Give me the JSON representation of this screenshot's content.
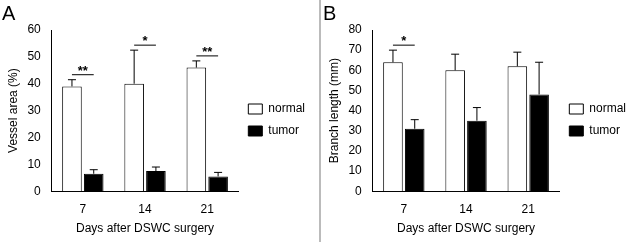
{
  "chart_data": [
    {
      "type": "bar",
      "title": "A",
      "x_label": "Days after DSWC surgery",
      "y_label": "Vessel area (%)",
      "categories": [
        "7",
        "14",
        "21"
      ],
      "series": [
        {
          "name": "normal",
          "color": "#ffffff",
          "values": [
            39,
            40,
            46
          ],
          "errors": [
            2.5,
            12.5,
            2.5
          ]
        },
        {
          "name": "tumor",
          "color": "#000000",
          "values": [
            6.5,
            7.5,
            5.5
          ],
          "errors": [
            1.5,
            1.5,
            1.5
          ]
        }
      ],
      "ylim": [
        0,
        60
      ],
      "yticks": [
        0,
        10,
        20,
        30,
        40,
        50,
        60
      ],
      "grid": false,
      "legend": "right",
      "annotations": [
        {
          "text": "**",
          "category": "7"
        },
        {
          "text": "*",
          "category": "14"
        },
        {
          "text": "**",
          "category": "21"
        }
      ]
    },
    {
      "type": "bar",
      "title": "B",
      "x_label": "Days after DSWC surgery",
      "y_label": "Branch length (mm)",
      "categories": [
        "7",
        "14",
        "21"
      ],
      "series": [
        {
          "name": "normal",
          "color": "#ffffff",
          "values": [
            64,
            60,
            62
          ],
          "errors": [
            6,
            8,
            7
          ]
        },
        {
          "name": "tumor",
          "color": "#000000",
          "values": [
            31,
            35,
            48
          ],
          "errors": [
            4.5,
            6.5,
            16
          ]
        }
      ],
      "ylim": [
        0,
        80
      ],
      "yticks": [
        0,
        10,
        20,
        30,
        40,
        50,
        60,
        70,
        80
      ],
      "grid": false,
      "legend": "right",
      "annotations": [
        {
          "text": "*",
          "category": "7"
        }
      ]
    }
  ]
}
